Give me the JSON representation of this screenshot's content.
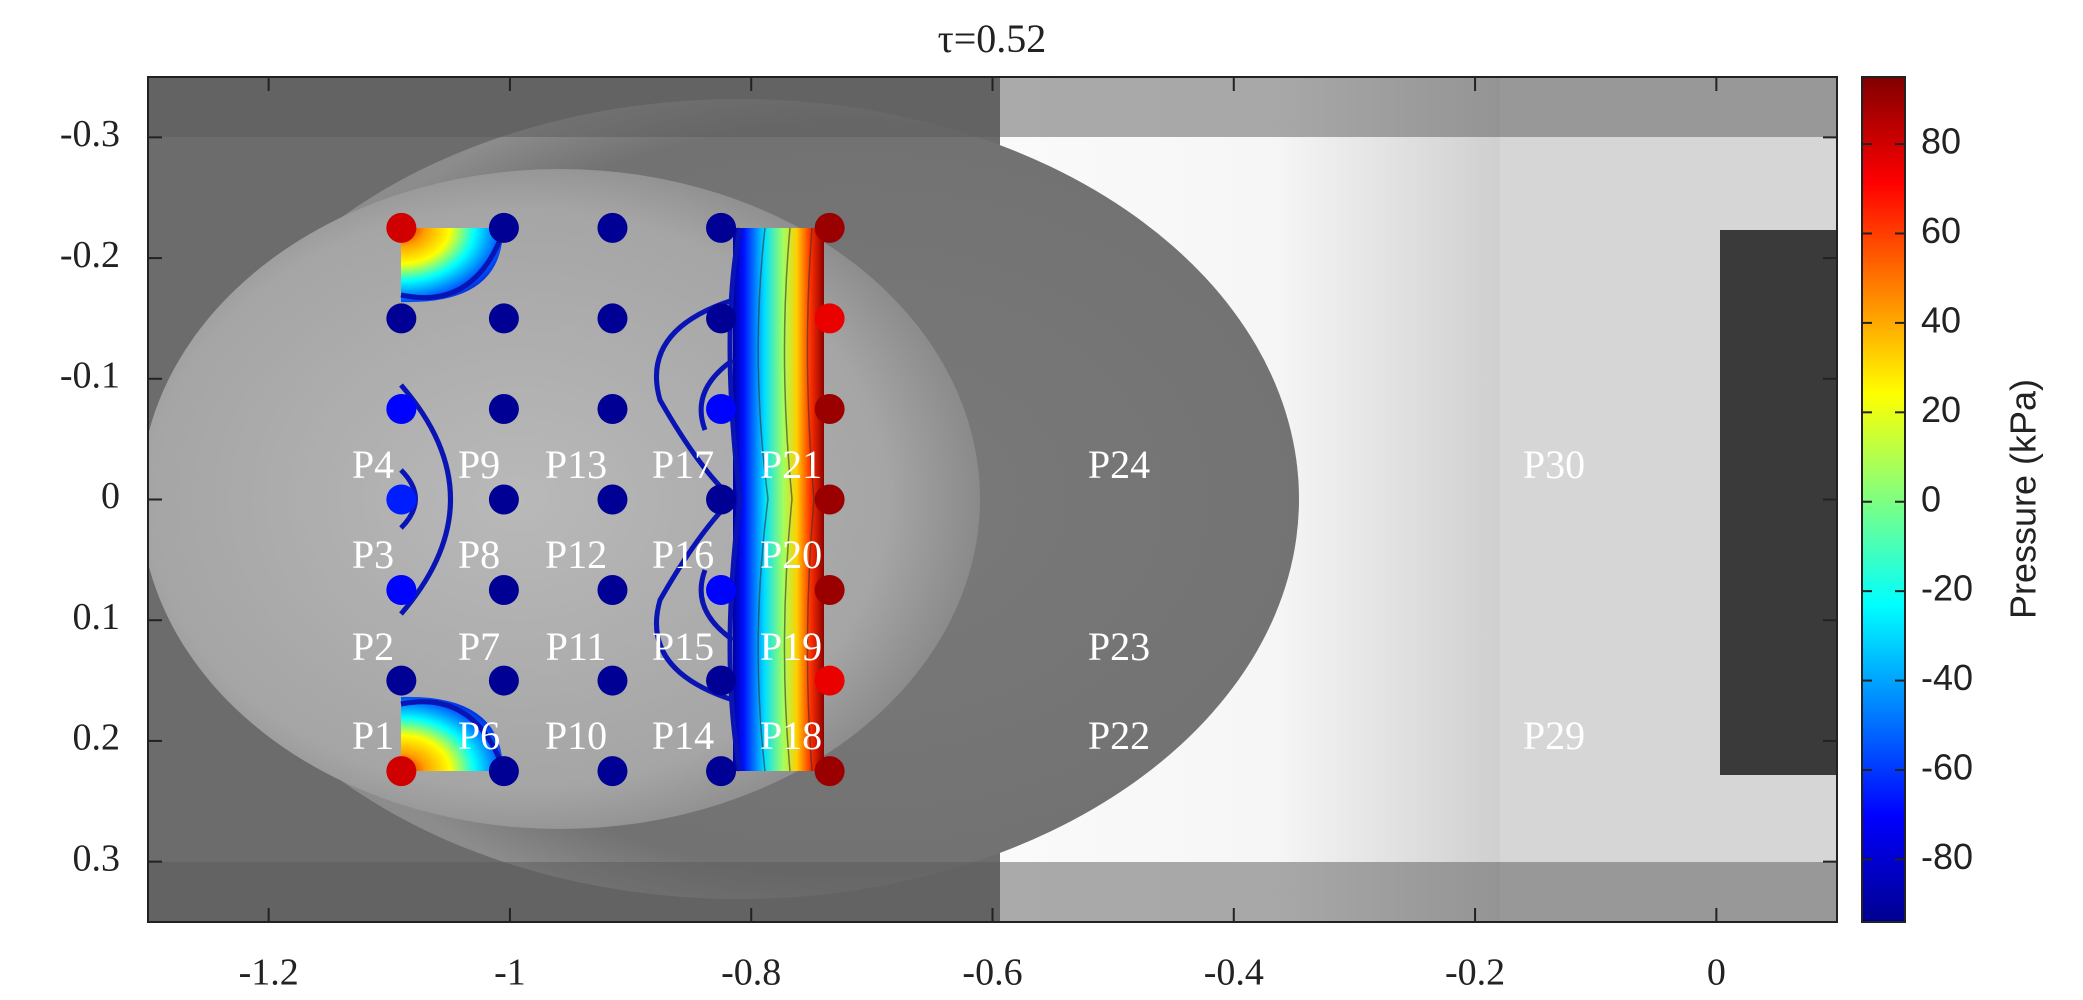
{
  "chart_data": {
    "type": "scatter",
    "title": "τ=0.52",
    "xlim": [
      -1.3,
      0.1
    ],
    "ylim": [
      -0.35,
      0.35
    ],
    "y_reversed": true,
    "xticks": [
      -1.2,
      -1,
      -0.8,
      -0.6,
      -0.4,
      -0.2,
      0
    ],
    "yticks": [
      -0.3,
      -0.2,
      -0.1,
      0,
      0.1,
      0.2,
      0.3
    ],
    "colorbar": {
      "label": "Pressure (kPa)",
      "clim": [
        -94,
        95
      ],
      "ticks": [
        -80,
        -60,
        -40,
        -20,
        0,
        20,
        40,
        60,
        80
      ],
      "colormap": "jet"
    },
    "points": {
      "x": [
        -1.09,
        -1.09,
        -1.09,
        -1.09,
        -1.09,
        -1.09,
        -1.09,
        -1.005,
        -1.005,
        -1.005,
        -1.005,
        -1.005,
        -1.005,
        -1.005,
        -0.915,
        -0.915,
        -0.915,
        -0.915,
        -0.915,
        -0.915,
        -0.915,
        -0.825,
        -0.825,
        -0.825,
        -0.825,
        -0.825,
        -0.825,
        -0.825,
        -0.735,
        -0.735,
        -0.735,
        -0.735,
        -0.735,
        -0.735,
        -0.735
      ],
      "y": [
        -0.225,
        -0.15,
        -0.075,
        0,
        0.075,
        0.15,
        0.225,
        -0.225,
        -0.15,
        -0.075,
        0,
        0.075,
        0.15,
        0.225,
        -0.225,
        -0.15,
        -0.075,
        0,
        0.075,
        0.15,
        0.225,
        -0.225,
        -0.15,
        -0.075,
        0,
        0.075,
        0.15,
        0.225,
        -0.225,
        -0.15,
        -0.075,
        0,
        0.075,
        0.15,
        0.225
      ],
      "values": [
        80,
        -90,
        -70,
        -65,
        -70,
        -90,
        80,
        -90,
        -90,
        -90,
        -90,
        -90,
        -90,
        -90,
        -90,
        -90,
        -90,
        -90,
        -90,
        -90,
        -90,
        -90,
        -90,
        -70,
        -90,
        -70,
        -90,
        -90,
        90,
        75,
        90,
        90,
        90,
        75,
        90
      ]
    },
    "sensor_labels": [
      [
        "P4",
        "P9",
        "P13",
        "P17",
        "P21",
        "P24",
        "P30"
      ],
      [
        "P3",
        "P8",
        "P12",
        "P16",
        "P20",
        null,
        null
      ],
      [
        "P2",
        "P7",
        "P11",
        "P15",
        "P19",
        "P23",
        null
      ],
      [
        "P1",
        "P6",
        "P10",
        "P14",
        "P18",
        "P22",
        "P29"
      ]
    ]
  }
}
